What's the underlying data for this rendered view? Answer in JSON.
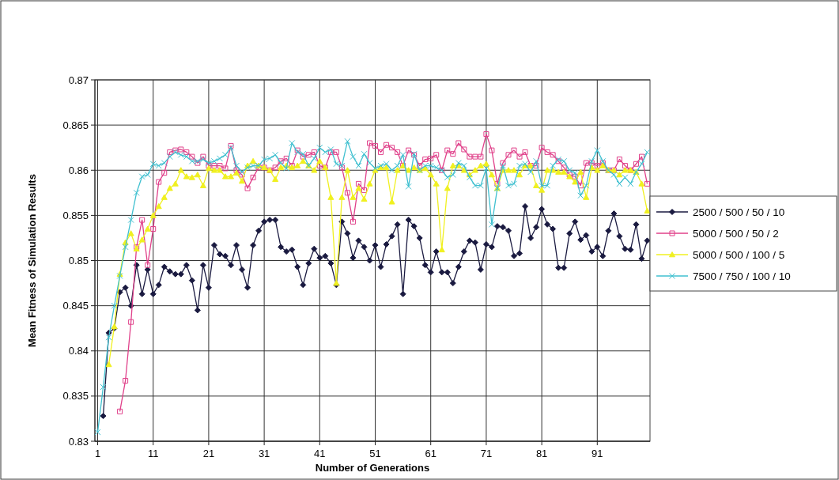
{
  "chart_data": {
    "type": "line",
    "xlabel": "Number of Generations",
    "ylabel": "Mean Fitness of Simulation Results",
    "x": [
      1,
      2,
      3,
      4,
      5,
      6,
      7,
      8,
      9,
      10,
      11,
      12,
      13,
      14,
      15,
      16,
      17,
      18,
      19,
      20,
      21,
      22,
      23,
      24,
      25,
      26,
      27,
      28,
      29,
      30,
      31,
      32,
      33,
      34,
      35,
      36,
      37,
      38,
      39,
      40,
      41,
      42,
      43,
      44,
      45,
      46,
      47,
      48,
      49,
      50,
      51,
      52,
      53,
      54,
      55,
      56,
      57,
      58,
      59,
      60,
      61,
      62,
      63,
      64,
      65,
      66,
      67,
      68,
      69,
      70,
      71,
      72,
      73,
      74,
      75,
      76,
      77,
      78,
      79,
      80,
      81,
      82,
      83,
      84,
      85,
      86,
      87,
      88,
      89,
      90,
      91,
      92,
      93,
      94,
      95,
      96,
      97,
      98,
      99,
      100
    ],
    "xlim": [
      0.5,
      100.5
    ],
    "xticks": [
      1,
      11,
      21,
      31,
      41,
      51,
      61,
      71,
      81,
      91
    ],
    "ylim": [
      0.83,
      0.87
    ],
    "yticks": [
      0.83,
      0.835,
      0.84,
      0.845,
      0.85,
      0.855,
      0.86,
      0.865,
      0.87
    ],
    "grid": true,
    "legend": "right",
    "series": [
      {
        "name": "2500 / 500 / 50 / 10",
        "color": "#1a1a40",
        "marker": "diamond",
        "values": [
          null,
          0.8328,
          0.842,
          0.8425,
          0.8465,
          0.847,
          0.845,
          0.8495,
          0.8463,
          0.849,
          0.8463,
          0.8473,
          0.8493,
          0.8488,
          0.8485,
          0.8485,
          0.8495,
          0.8478,
          0.8445,
          0.8495,
          0.847,
          0.8517,
          0.8507,
          0.8505,
          0.8495,
          0.8517,
          0.849,
          0.847,
          0.8517,
          0.8533,
          0.8543,
          0.8545,
          0.8545,
          0.8515,
          0.851,
          0.8512,
          0.8493,
          0.8473,
          0.8497,
          0.8513,
          0.8503,
          0.8505,
          0.8497,
          0.8473,
          0.8543,
          0.853,
          0.8503,
          0.8522,
          0.8515,
          0.85,
          0.8517,
          0.8493,
          0.8518,
          0.8527,
          0.854,
          0.8463,
          0.8545,
          0.8538,
          0.8525,
          0.8495,
          0.8487,
          0.851,
          0.8487,
          0.8487,
          0.8475,
          0.8493,
          0.851,
          0.8522,
          0.852,
          0.849,
          0.8518,
          0.8515,
          0.8538,
          0.8537,
          0.8533,
          0.8505,
          0.8508,
          0.856,
          0.8525,
          0.8537,
          0.8557,
          0.854,
          0.8535,
          0.8492,
          0.8492,
          0.853,
          0.8543,
          0.8523,
          0.8528,
          0.851,
          0.8515,
          0.8505,
          0.8533,
          0.8552,
          0.8527,
          0.8513,
          0.8512,
          0.854,
          0.8502,
          0.8522
        ]
      },
      {
        "name": "5000 / 500 / 50 / 2",
        "color": "#e0408a",
        "marker": "square",
        "values": [
          null,
          null,
          null,
          null,
          0.8333,
          0.8367,
          0.8432,
          0.8515,
          0.8545,
          0.8495,
          0.8535,
          0.8587,
          0.8597,
          0.862,
          0.8622,
          0.8623,
          0.862,
          0.8615,
          0.8608,
          0.8615,
          0.8605,
          0.8605,
          0.8605,
          0.8602,
          0.8627,
          0.86,
          0.8595,
          0.858,
          0.8592,
          0.8603,
          0.8603,
          0.86,
          0.8603,
          0.861,
          0.8613,
          0.8605,
          0.8622,
          0.8615,
          0.8617,
          0.862,
          0.8605,
          0.8603,
          0.862,
          0.862,
          0.8603,
          0.8575,
          0.8543,
          0.8585,
          0.8578,
          0.863,
          0.8627,
          0.862,
          0.8628,
          0.8625,
          0.862,
          0.8605,
          0.8622,
          0.8617,
          0.8605,
          0.8612,
          0.8613,
          0.8617,
          0.86,
          0.8622,
          0.8618,
          0.863,
          0.8623,
          0.8615,
          0.8615,
          0.8615,
          0.864,
          0.8622,
          0.8585,
          0.8608,
          0.8617,
          0.8622,
          0.8615,
          0.862,
          0.8605,
          0.8605,
          0.8625,
          0.862,
          0.8617,
          0.861,
          0.8603,
          0.8595,
          0.8593,
          0.8583,
          0.8608,
          0.8608,
          0.8605,
          0.8608,
          0.86,
          0.86,
          0.8612,
          0.8605,
          0.86,
          0.8607,
          0.8615,
          0.8585
        ]
      },
      {
        "name": "5000 / 500 / 100 / 5",
        "color": "#f0f020",
        "marker": "triangle",
        "values": [
          null,
          null,
          0.8385,
          0.8427,
          0.8485,
          0.852,
          0.853,
          0.8513,
          0.8523,
          0.8535,
          0.855,
          0.856,
          0.857,
          0.858,
          0.8585,
          0.86,
          0.8593,
          0.8592,
          0.8595,
          0.8583,
          0.8602,
          0.86,
          0.86,
          0.8593,
          0.8593,
          0.8597,
          0.8588,
          0.8605,
          0.861,
          0.8605,
          0.8603,
          0.86,
          0.859,
          0.8603,
          0.8605,
          0.8603,
          0.8605,
          0.861,
          0.8605,
          0.86,
          0.861,
          0.8603,
          0.857,
          0.8475,
          0.857,
          0.86,
          0.857,
          0.858,
          0.8568,
          0.8585,
          0.86,
          0.8603,
          0.8603,
          0.8565,
          0.86,
          0.8605,
          0.86,
          0.8603,
          0.86,
          0.8602,
          0.8595,
          0.8585,
          0.8512,
          0.858,
          0.8605,
          0.8605,
          0.86,
          0.8595,
          0.86,
          0.8605,
          0.8607,
          0.8595,
          0.858,
          0.86,
          0.86,
          0.86,
          0.8595,
          0.8605,
          0.8605,
          0.8583,
          0.8578,
          0.86,
          0.86,
          0.8598,
          0.8598,
          0.8593,
          0.8587,
          0.8598,
          0.857,
          0.8603,
          0.86,
          0.8605,
          0.86,
          0.86,
          0.8595,
          0.86,
          0.86,
          0.8598,
          0.8585,
          0.8555
        ]
      },
      {
        "name": "7500 / 750 / 100 / 10",
        "color": "#40c0d0",
        "marker": "cross",
        "values": [
          0.831,
          0.836,
          0.8415,
          0.845,
          0.8483,
          0.8515,
          0.8545,
          0.8575,
          0.8593,
          0.8595,
          0.8607,
          0.8605,
          0.8608,
          0.8615,
          0.862,
          0.8617,
          0.8615,
          0.861,
          0.861,
          0.8612,
          0.8608,
          0.861,
          0.8613,
          0.8617,
          0.8625,
          0.8605,
          0.8598,
          0.8603,
          0.8605,
          0.8605,
          0.8612,
          0.8613,
          0.8617,
          0.8608,
          0.8602,
          0.863,
          0.862,
          0.8618,
          0.8605,
          0.8613,
          0.8625,
          0.862,
          0.8623,
          0.8607,
          0.8605,
          0.8632,
          0.8615,
          0.8605,
          0.8618,
          0.8608,
          0.8602,
          0.8605,
          0.8607,
          0.86,
          0.8605,
          0.8617,
          0.8582,
          0.8618,
          0.86,
          0.8605,
          0.8605,
          0.8603,
          0.86,
          0.8592,
          0.8595,
          0.8608,
          0.8605,
          0.8592,
          0.8583,
          0.8583,
          0.8602,
          0.854,
          0.858,
          0.8605,
          0.8583,
          0.8585,
          0.8605,
          0.8607,
          0.8598,
          0.861,
          0.8583,
          0.8583,
          0.8605,
          0.8612,
          0.861,
          0.86,
          0.8597,
          0.8572,
          0.8583,
          0.861,
          0.8622,
          0.861,
          0.86,
          0.8595,
          0.8585,
          0.8592,
          0.8585,
          0.8598,
          0.8607,
          0.862
        ]
      }
    ]
  }
}
